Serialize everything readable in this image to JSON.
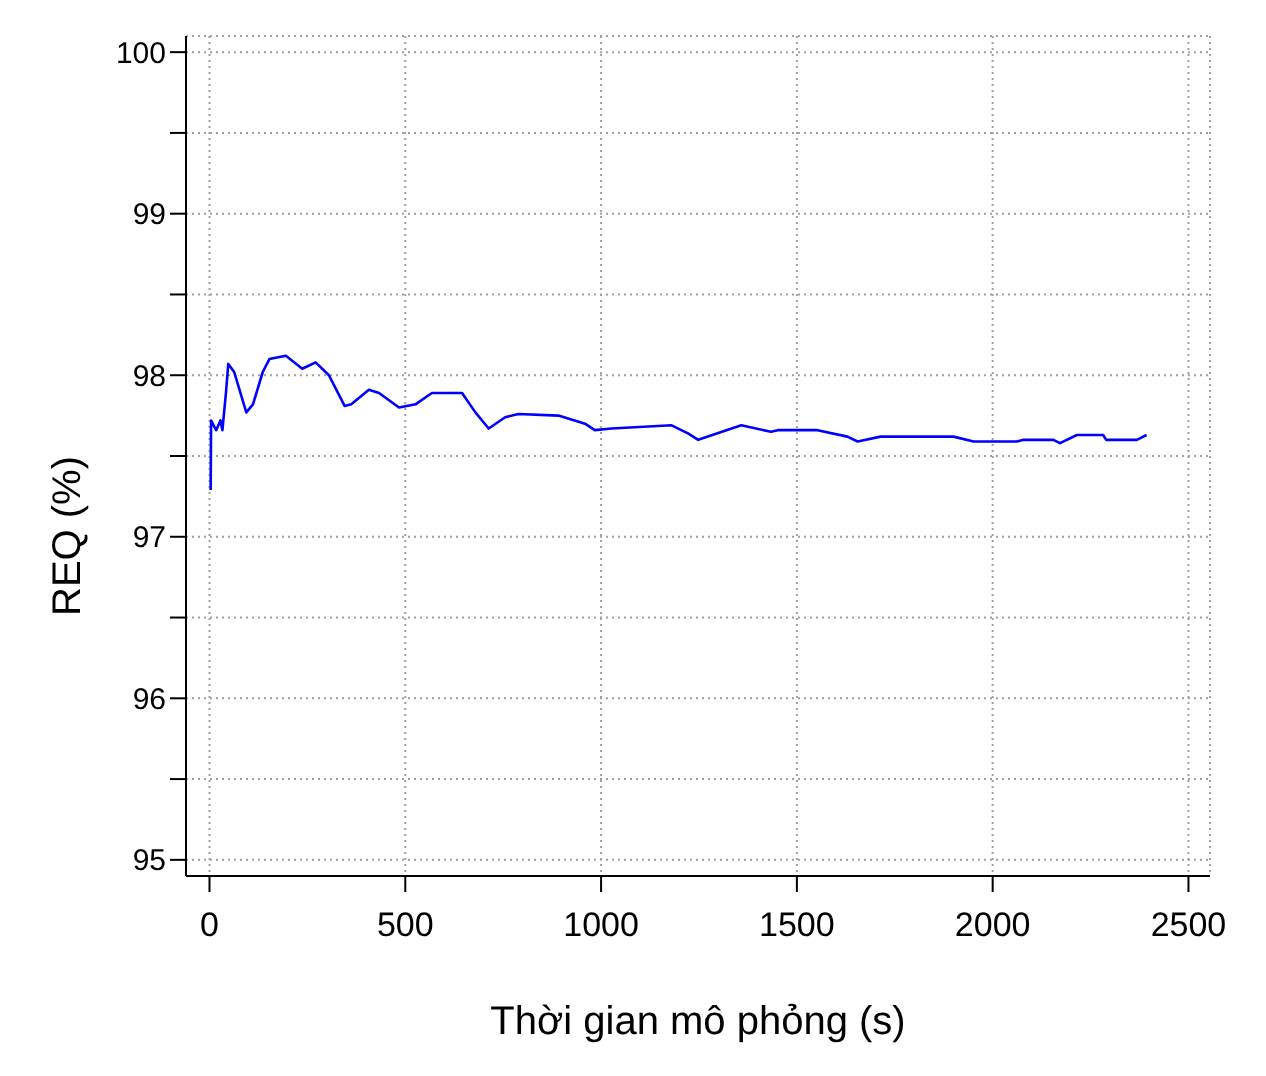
{
  "chart_data": {
    "type": "line",
    "xlabel": "Thời gian mô phỏng (s)",
    "ylabel": "REQ (%)",
    "xlim": [
      -60,
      2555
    ],
    "ylim": [
      94.9,
      100.1
    ],
    "xticks": [
      0,
      500,
      1000,
      1500,
      2000,
      2500
    ],
    "yticks": [
      95,
      {
        "value": 95.5,
        "label": null
      },
      96,
      {
        "value": 96.5,
        "label": null
      },
      97,
      {
        "value": 97.5,
        "label": null
      },
      98,
      {
        "value": 98.5,
        "label": null
      },
      99,
      {
        "value": 99.5,
        "label": null
      },
      100
    ],
    "grid": true,
    "line_style": "solid",
    "marker": "none",
    "series": [
      {
        "color": "#0000ff",
        "x": [
          3,
          4,
          17,
          28,
          33,
          42,
          48,
          63,
          94,
          111,
          136,
          153,
          195,
          237,
          271,
          305,
          345,
          362,
          407,
          433,
          484,
          526,
          568,
          645,
          679,
          713,
          755,
          789,
          891,
          959,
          984,
          1027,
          1180,
          1222,
          1248,
          1358,
          1434,
          1451,
          1553,
          1629,
          1655,
          1714,
          1900,
          1951,
          2062,
          2079,
          2155,
          2172,
          2215,
          2282,
          2290,
          2368,
          2393
        ],
        "values": [
          97.29,
          97.72,
          97.66,
          97.72,
          97.66,
          97.89,
          98.07,
          98.02,
          97.77,
          97.82,
          98.02,
          98.1,
          98.12,
          98.04,
          98.08,
          98.0,
          97.81,
          97.82,
          97.91,
          97.89,
          97.8,
          97.82,
          97.89,
          97.89,
          97.77,
          97.67,
          97.74,
          97.76,
          97.75,
          97.7,
          97.66,
          97.67,
          97.69,
          97.64,
          97.6,
          97.69,
          97.65,
          97.66,
          97.66,
          97.62,
          97.59,
          97.62,
          97.62,
          97.59,
          97.59,
          97.6,
          97.6,
          97.58,
          97.63,
          97.63,
          97.6,
          97.6,
          97.63
        ]
      }
    ]
  }
}
